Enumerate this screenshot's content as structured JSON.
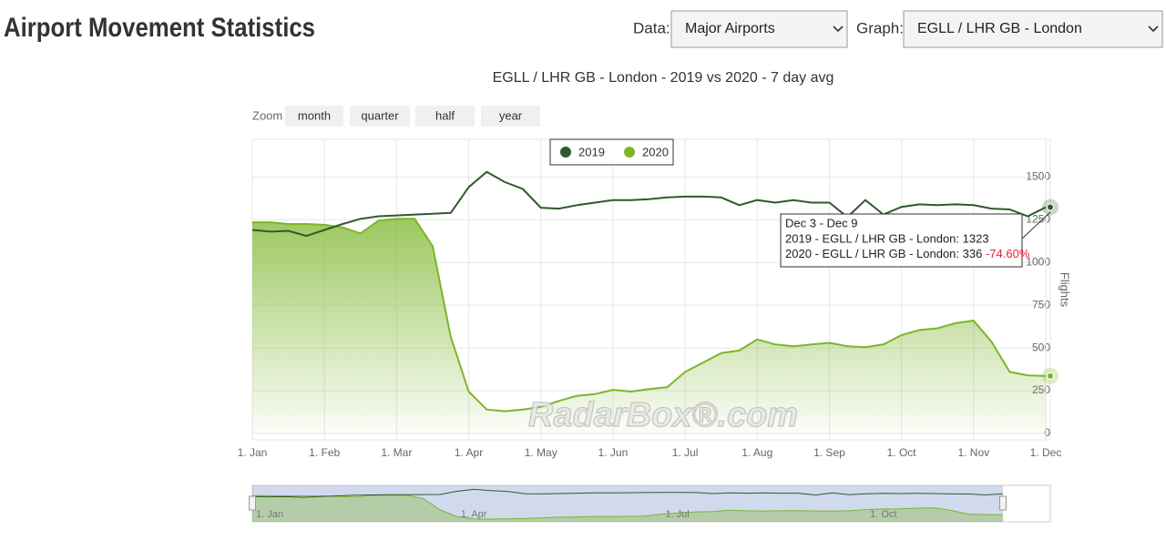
{
  "header": {
    "title": "Airport Movement Statistics",
    "data_label": "Data:",
    "data_select": "Major Airports",
    "graph_label": "Graph:",
    "graph_select": "EGLL / LHR GB - London"
  },
  "zoom": {
    "label": "Zoom",
    "buttons": [
      "month",
      "quarter",
      "half",
      "year"
    ]
  },
  "watermark": "RadarBox®.com",
  "tooltip": {
    "title": "Dec 3 - Dec 9",
    "line_2019": "2019 - EGLL / LHR GB - London: 1323",
    "line_2020": "2020 - EGLL / LHR GB - London: 336",
    "change": "-74.60%"
  },
  "chart_data": {
    "type": "line",
    "title": "EGLL / LHR GB - London - 2019 vs 2020 - 7 day avg",
    "y_label": "Flights",
    "categories": [
      "1. Jan",
      null,
      null,
      null,
      "1. Feb",
      null,
      null,
      null,
      "1. Mar",
      null,
      null,
      null,
      "1. Apr",
      null,
      null,
      null,
      "1. May",
      null,
      null,
      null,
      "1. Jun",
      null,
      null,
      null,
      "1. Jul",
      null,
      null,
      null,
      "1. Aug",
      null,
      null,
      null,
      "1. Sep",
      null,
      null,
      null,
      "1. Oct",
      null,
      null,
      null,
      "1. Nov",
      null,
      null,
      null,
      "1. Dec"
    ],
    "series": [
      {
        "name": "2019",
        "type": "line",
        "color": "#2f5a2a",
        "values": [
          1190,
          1180,
          1185,
          1155,
          1190,
          1225,
          1255,
          1270,
          1275,
          1280,
          1285,
          1290,
          1440,
          1530,
          1470,
          1430,
          1320,
          1315,
          1335,
          1350,
          1365,
          1365,
          1370,
          1380,
          1385,
          1385,
          1380,
          1335,
          1365,
          1350,
          1365,
          1350,
          1350,
          1265,
          1365,
          1280,
          1325,
          1340,
          1335,
          1340,
          1335,
          1315,
          1310,
          1270,
          1323
        ]
      },
      {
        "name": "2020",
        "type": "area",
        "color": "#7cb52a",
        "values": [
          1235,
          1235,
          1225,
          1225,
          1220,
          1205,
          1170,
          1245,
          1255,
          1255,
          1095,
          565,
          245,
          140,
          130,
          140,
          155,
          190,
          220,
          230,
          255,
          245,
          260,
          270,
          360,
          415,
          470,
          485,
          550,
          520,
          510,
          520,
          530,
          510,
          505,
          520,
          575,
          605,
          615,
          645,
          660,
          535,
          360,
          340,
          336
        ]
      }
    ],
    "ylim": [
      0,
      1720
    ],
    "yticks": [
      0,
      250,
      500,
      750,
      1000,
      1250,
      1500
    ],
    "grid": true,
    "legend": "top"
  }
}
